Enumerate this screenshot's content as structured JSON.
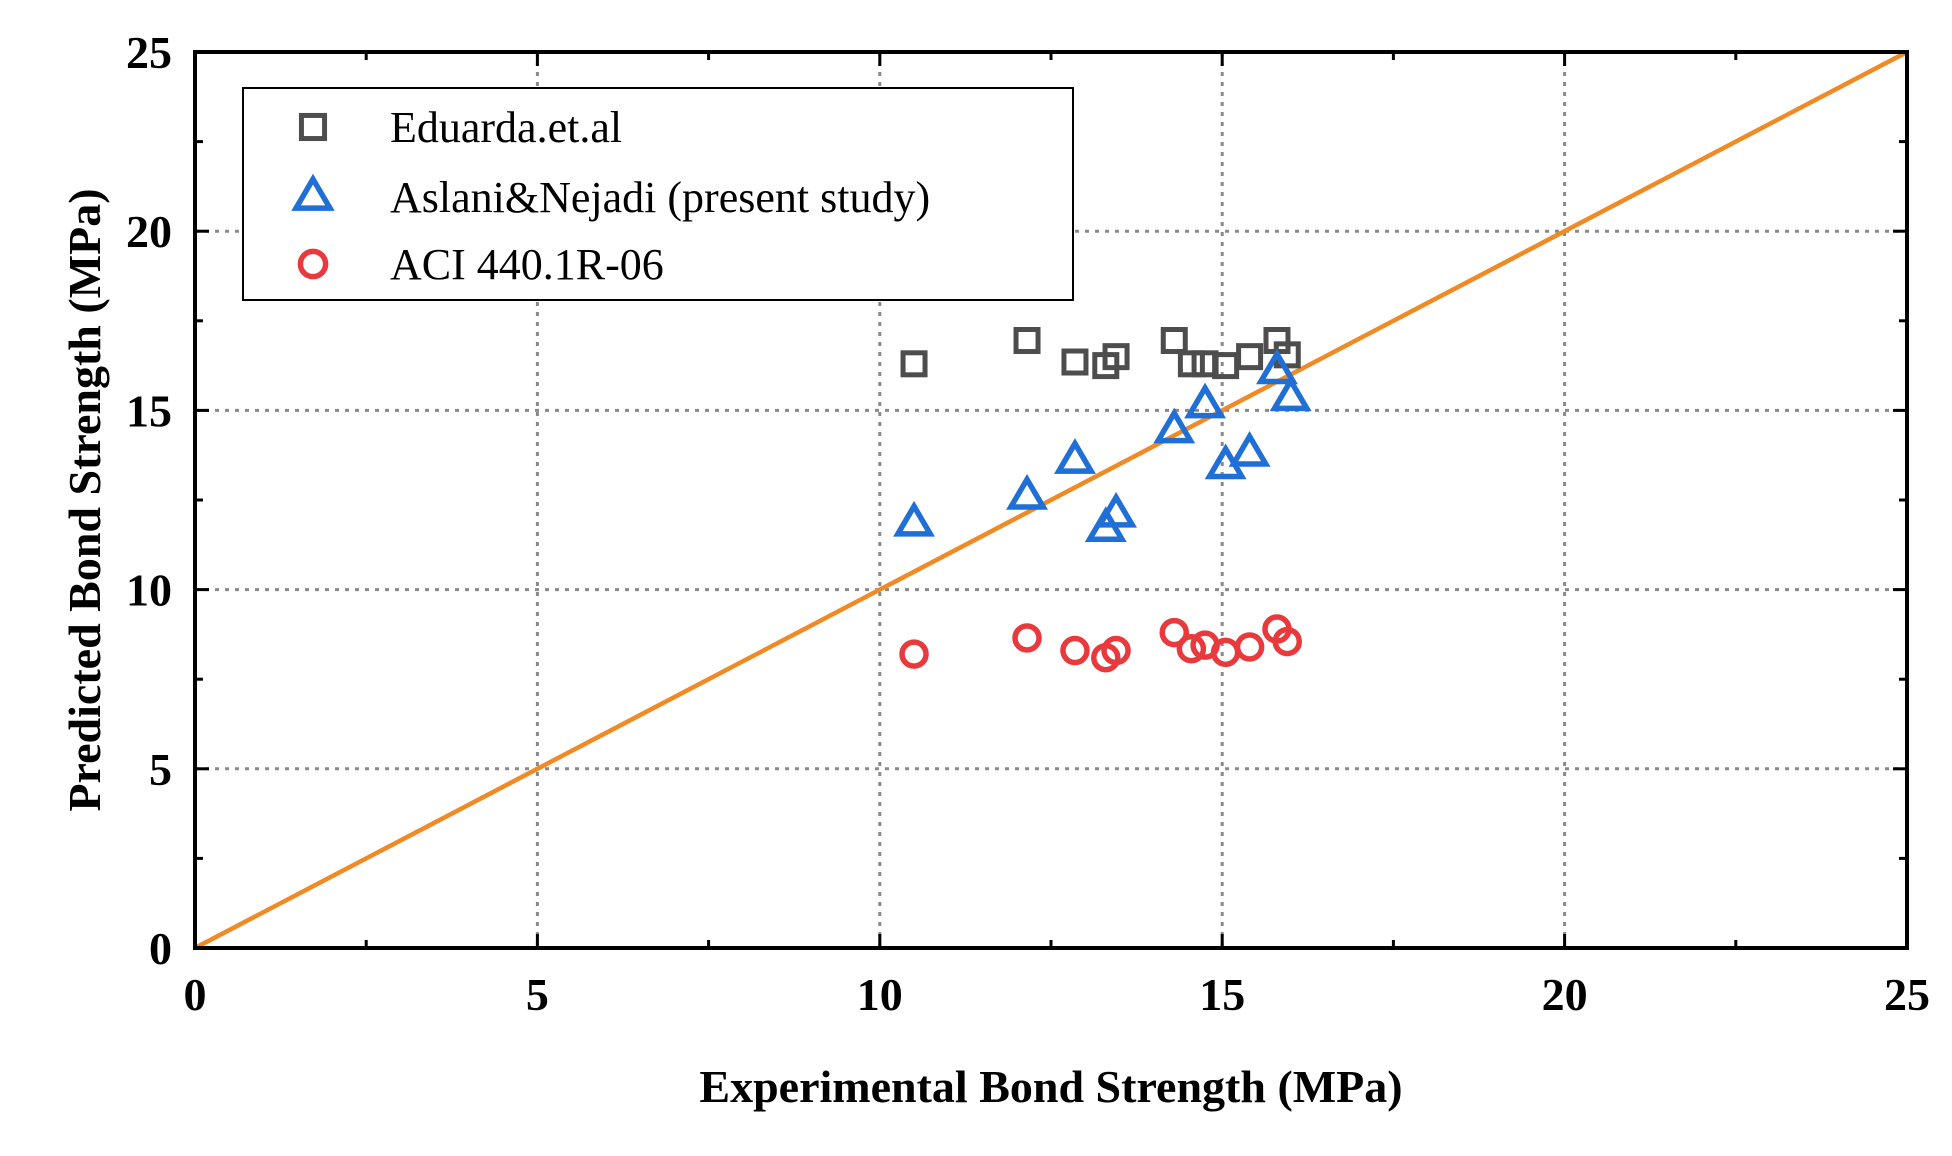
{
  "chart_data": {
    "type": "scatter",
    "title": "",
    "xlabel": "Experimental Bond Strength (MPa)",
    "ylabel": "Predicted Bond Strength (MPa)",
    "xlim": [
      0,
      25
    ],
    "ylim": [
      0,
      25
    ],
    "xticks": [
      "0",
      "5",
      "10",
      "15",
      "20",
      "25"
    ],
    "yticks": [
      "0",
      "5",
      "10",
      "15",
      "20",
      "25"
    ],
    "grid": true,
    "legend_position": "top-left",
    "reference_line": {
      "name": "y = x",
      "x": [
        0,
        25
      ],
      "y": [
        0,
        25
      ],
      "color": "#f08a24"
    },
    "series": [
      {
        "name": "Eduarda.et.al",
        "marker": "square",
        "color": "#4d4d4d",
        "points": [
          [
            10.5,
            16.3
          ],
          [
            12.15,
            16.95
          ],
          [
            12.85,
            16.35
          ],
          [
            13.3,
            16.25
          ],
          [
            13.45,
            16.5
          ],
          [
            14.3,
            16.95
          ],
          [
            14.55,
            16.3
          ],
          [
            14.75,
            16.3
          ],
          [
            15.05,
            16.25
          ],
          [
            15.4,
            16.5
          ],
          [
            15.8,
            16.95
          ],
          [
            15.95,
            16.55
          ]
        ]
      },
      {
        "name": "Aslani&Nejadi (present study)",
        "marker": "triangle",
        "color": "#1f6fd6",
        "points": [
          [
            10.5,
            11.85
          ],
          [
            12.15,
            12.6
          ],
          [
            12.85,
            13.6
          ],
          [
            13.3,
            11.7
          ],
          [
            13.45,
            12.1
          ],
          [
            14.3,
            14.45
          ],
          [
            14.75,
            15.15
          ],
          [
            15.05,
            13.45
          ],
          [
            15.4,
            13.8
          ],
          [
            15.8,
            16.1
          ],
          [
            16.0,
            15.35
          ]
        ]
      },
      {
        "name": "ACI 440.1R-06",
        "marker": "circle",
        "color": "#e8393d",
        "points": [
          [
            10.5,
            8.2
          ],
          [
            12.15,
            8.65
          ],
          [
            12.85,
            8.3
          ],
          [
            13.3,
            8.1
          ],
          [
            13.45,
            8.3
          ],
          [
            14.3,
            8.8
          ],
          [
            14.55,
            8.35
          ],
          [
            14.75,
            8.45
          ],
          [
            15.05,
            8.25
          ],
          [
            15.4,
            8.4
          ],
          [
            15.8,
            8.9
          ],
          [
            15.95,
            8.55
          ]
        ]
      }
    ]
  }
}
